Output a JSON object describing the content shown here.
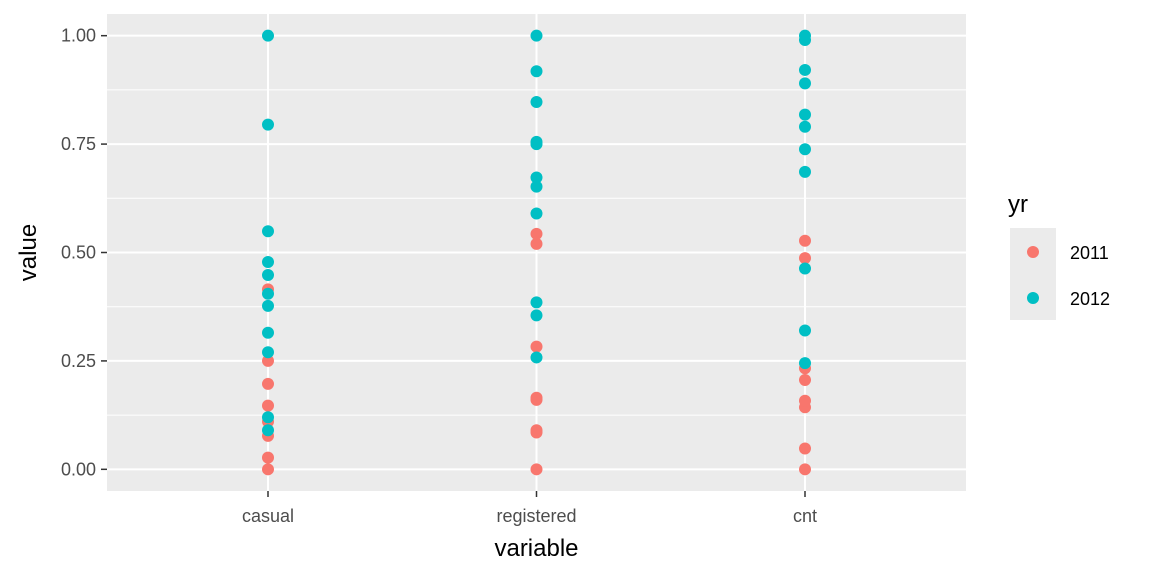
{
  "chart_data": {
    "type": "scatter",
    "title": "",
    "xlabel": "variable",
    "ylabel": "value",
    "categories": [
      "casual",
      "registered",
      "cnt"
    ],
    "ylim": [
      -0.05,
      1.05
    ],
    "yticks": [
      0.0,
      0.25,
      0.5,
      0.75,
      1.0
    ],
    "ytick_labels": [
      "0.00",
      "0.25",
      "0.50",
      "0.75",
      "1.00"
    ],
    "grid": true,
    "legend": {
      "title": "yr",
      "placement": "right"
    },
    "series": [
      {
        "name": "2011",
        "color": "#F8766D",
        "points": [
          {
            "x": "casual",
            "y": 0.0
          },
          {
            "x": "casual",
            "y": 0.027
          },
          {
            "x": "casual",
            "y": 0.077
          },
          {
            "x": "casual",
            "y": 0.11
          },
          {
            "x": "casual",
            "y": 0.147
          },
          {
            "x": "casual",
            "y": 0.197
          },
          {
            "x": "casual",
            "y": 0.25
          },
          {
            "x": "casual",
            "y": 0.415
          },
          {
            "x": "registered",
            "y": 0.0
          },
          {
            "x": "registered",
            "y": 0.085
          },
          {
            "x": "registered",
            "y": 0.09
          },
          {
            "x": "registered",
            "y": 0.16
          },
          {
            "x": "registered",
            "y": 0.165
          },
          {
            "x": "registered",
            "y": 0.283
          },
          {
            "x": "registered",
            "y": 0.52
          },
          {
            "x": "registered",
            "y": 0.543
          },
          {
            "x": "cnt",
            "y": 0.0
          },
          {
            "x": "cnt",
            "y": 0.048
          },
          {
            "x": "cnt",
            "y": 0.143
          },
          {
            "x": "cnt",
            "y": 0.158
          },
          {
            "x": "cnt",
            "y": 0.206
          },
          {
            "x": "cnt",
            "y": 0.233
          },
          {
            "x": "cnt",
            "y": 0.487
          },
          {
            "x": "cnt",
            "y": 0.527
          }
        ]
      },
      {
        "name": "2012",
        "color": "#00BFC4",
        "points": [
          {
            "x": "casual",
            "y": 0.09
          },
          {
            "x": "casual",
            "y": 0.12
          },
          {
            "x": "casual",
            "y": 0.27
          },
          {
            "x": "casual",
            "y": 0.315
          },
          {
            "x": "casual",
            "y": 0.377
          },
          {
            "x": "casual",
            "y": 0.405
          },
          {
            "x": "casual",
            "y": 0.448
          },
          {
            "x": "casual",
            "y": 0.478
          },
          {
            "x": "casual",
            "y": 0.549
          },
          {
            "x": "casual",
            "y": 0.795
          },
          {
            "x": "casual",
            "y": 1.0
          },
          {
            "x": "registered",
            "y": 0.258
          },
          {
            "x": "registered",
            "y": 0.355
          },
          {
            "x": "registered",
            "y": 0.385
          },
          {
            "x": "registered",
            "y": 0.59
          },
          {
            "x": "registered",
            "y": 0.652
          },
          {
            "x": "registered",
            "y": 0.673
          },
          {
            "x": "registered",
            "y": 0.75
          },
          {
            "x": "registered",
            "y": 0.755
          },
          {
            "x": "registered",
            "y": 0.847
          },
          {
            "x": "registered",
            "y": 0.918
          },
          {
            "x": "registered",
            "y": 1.0
          },
          {
            "x": "cnt",
            "y": 0.245
          },
          {
            "x": "cnt",
            "y": 0.32
          },
          {
            "x": "cnt",
            "y": 0.463
          },
          {
            "x": "cnt",
            "y": 0.686
          },
          {
            "x": "cnt",
            "y": 0.738
          },
          {
            "x": "cnt",
            "y": 0.79
          },
          {
            "x": "cnt",
            "y": 0.818
          },
          {
            "x": "cnt",
            "y": 0.89
          },
          {
            "x": "cnt",
            "y": 0.921
          },
          {
            "x": "cnt",
            "y": 0.99
          },
          {
            "x": "cnt",
            "y": 1.0
          }
        ]
      }
    ]
  }
}
